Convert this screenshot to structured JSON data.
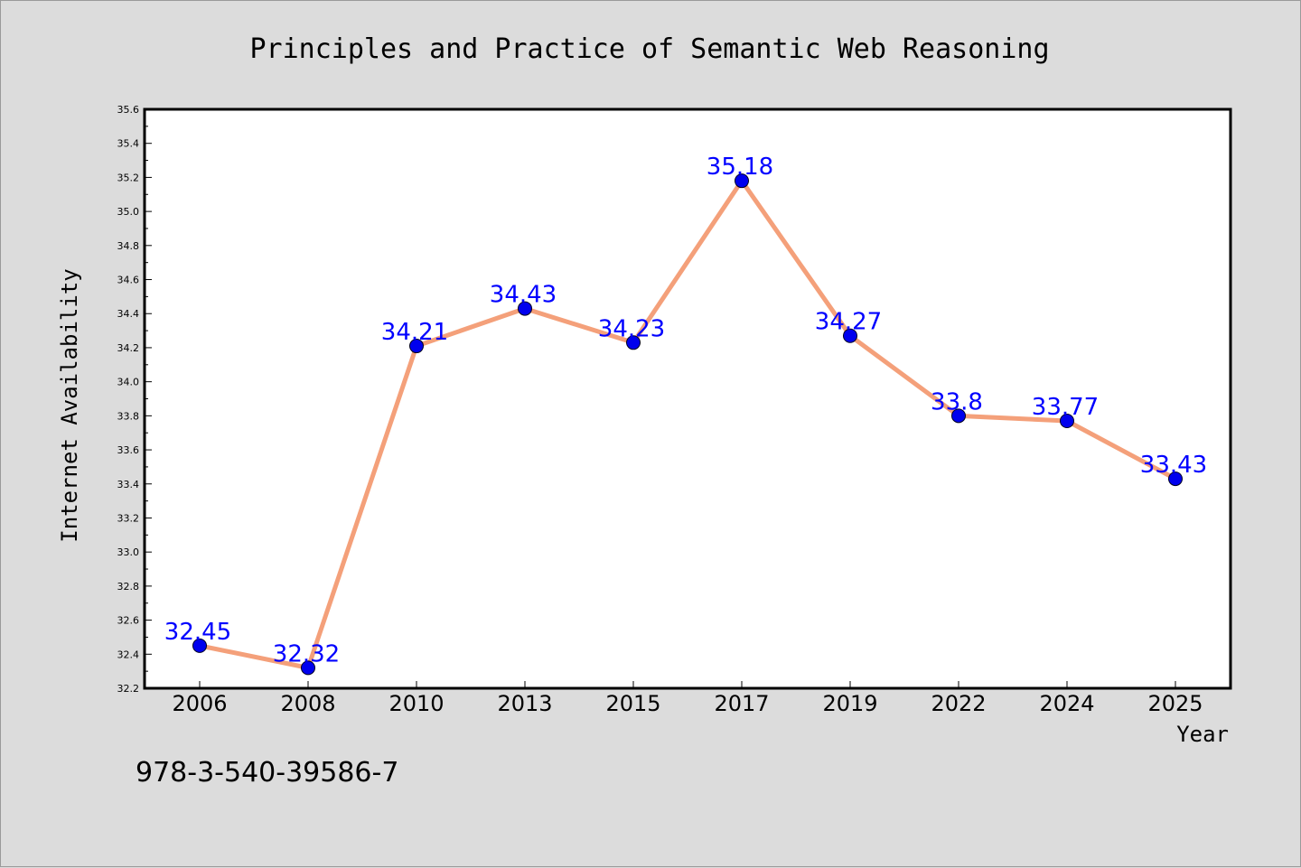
{
  "chart_data": {
    "type": "line",
    "title": "Principles and Practice of Semantic Web Reasoning",
    "xlabel": "Year",
    "ylabel": "Internet Availability",
    "categories": [
      "2006",
      "2008",
      "2010",
      "2013",
      "2015",
      "2017",
      "2019",
      "2022",
      "2024",
      "2025"
    ],
    "series": [
      {
        "values": [
          32.45,
          32.32,
          34.21,
          34.43,
          34.23,
          35.18,
          34.27,
          33.8,
          33.77,
          33.43
        ],
        "data_labels": [
          "32.45",
          "32.32",
          "34.21",
          "34.43",
          "34.23",
          "35.18",
          "34.27",
          "33.8",
          "33.77",
          "33.43"
        ]
      }
    ],
    "ylim": [
      32.2,
      35.6
    ],
    "yticks": [
      "32.2",
      "32.4",
      "32.6",
      "32.8",
      "33.0",
      "33.2",
      "33.4",
      "33.6",
      "33.8",
      "34.0",
      "34.2",
      "34.4",
      "34.6",
      "34.8",
      "35.0",
      "35.2",
      "35.4",
      "35.6"
    ],
    "grid": false,
    "legend": "none",
    "colors": {
      "line": "#f4a07a",
      "marker": "#0000ee",
      "data_label": "#0000ff",
      "background": "#dcdcdc",
      "plot_background": "#ffffff"
    }
  },
  "footer": {
    "isbn": "978-3-540-39586-7"
  }
}
